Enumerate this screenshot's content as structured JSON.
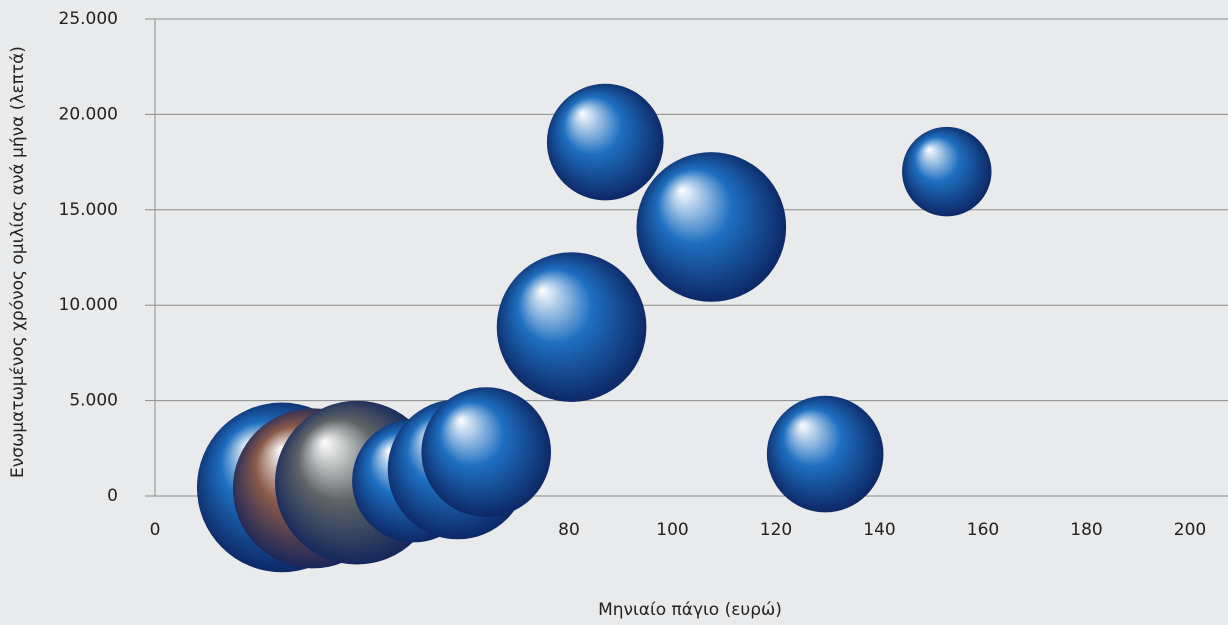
{
  "chart_data": {
    "type": "bubble",
    "x_label": "Μηνιαίο πάγιο (ευρώ)",
    "y_label": "Ενσωματωμένος χρόνος ομιλίας ανά μήνα (λεπτά)",
    "xlim": [
      0,
      200
    ],
    "xticks": [
      0,
      20,
      40,
      60,
      80,
      100,
      120,
      140,
      160,
      180,
      200
    ],
    "ylim": [
      0,
      25000
    ],
    "yticks": [
      0,
      {
        "value": 5000,
        "label": "5.000"
      },
      {
        "value": 10000,
        "label": "10.000"
      },
      {
        "value": 15000,
        "label": "15.000"
      },
      {
        "value": 20000,
        "label": "20.000"
      },
      {
        "value": 25000,
        "label": "25.000"
      }
    ],
    "grid": true,
    "series": [
      {
        "x": [
          24.5,
          30.5,
          39,
          50,
          58.5,
          64,
          80.5,
          87,
          107.5,
          129.5,
          153
        ],
        "y": [
          450,
          400,
          700,
          800,
          1400,
          2300,
          8850,
          18550,
          14100,
          2200,
          17000
        ],
        "size": [
          72,
          64,
          67,
          38,
          49,
          42,
          56,
          34,
          56,
          34,
          20
        ],
        "colors": [
          "#1e6fc0",
          "#8a5a4a",
          "#5f6466",
          "#1e6fc0",
          "#1e6fc0",
          "#1e6fc0",
          "#1e6fc0",
          "#1e6fc0",
          "#1e6fc0",
          "#1e6fc0",
          "#1e6fc0"
        ]
      }
    ]
  }
}
